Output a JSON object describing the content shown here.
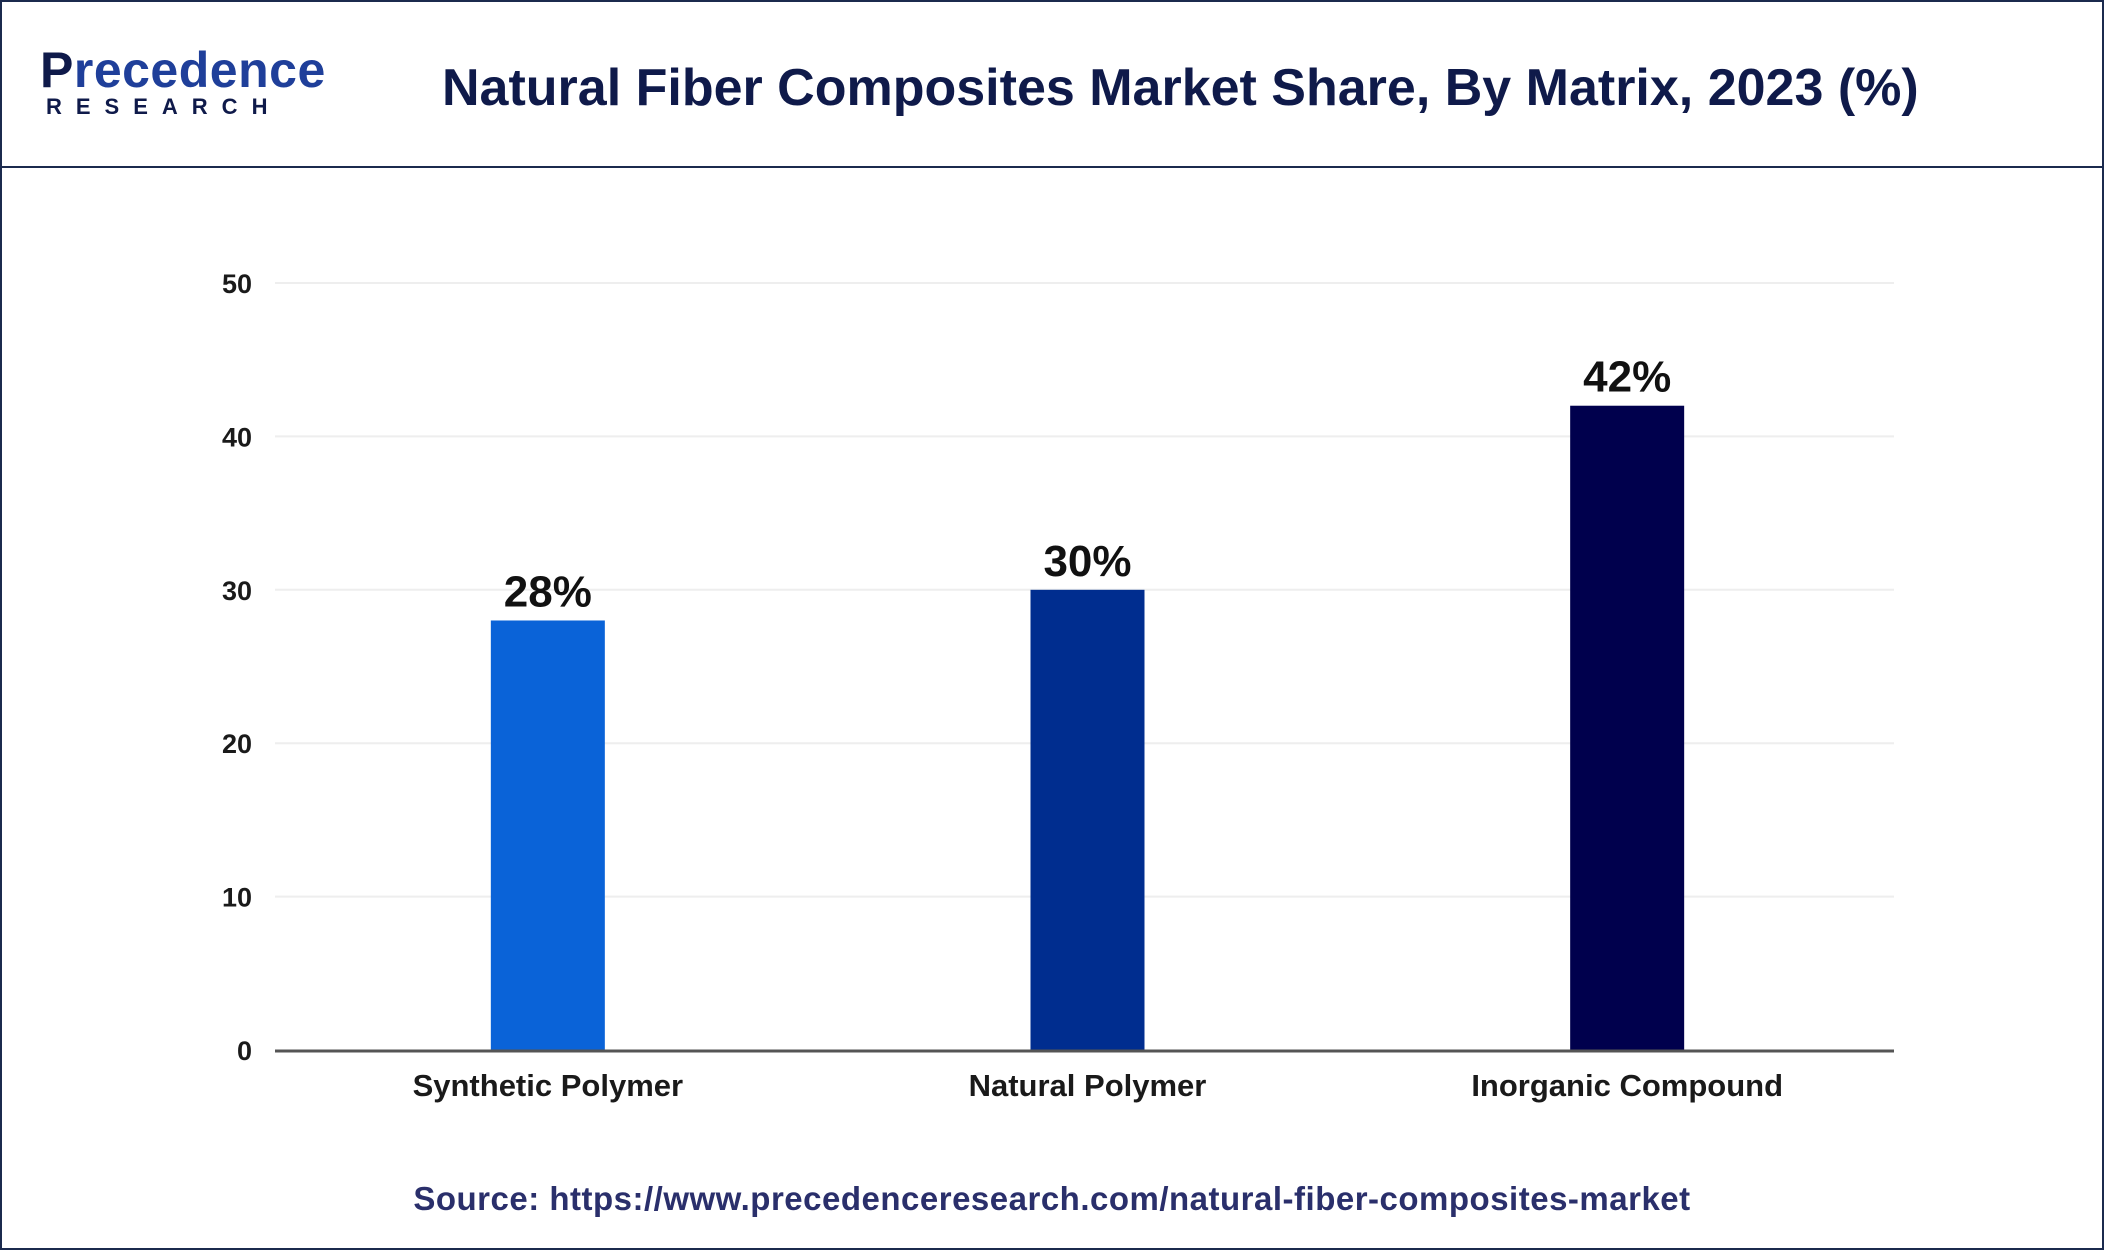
{
  "brand": {
    "logo_word": "recedence",
    "logo_initial": "P",
    "logo_sub": "RESEARCH"
  },
  "title": "Natural Fiber Composites Market Share, By Matrix, 2023 (%)",
  "source": "Source: https://www.precedenceresearch.com/natural-fiber-composites-market",
  "chart_data": {
    "type": "bar",
    "categories": [
      "Synthetic Polymer",
      "Natural Polymer",
      "Inorganic Compound"
    ],
    "values": [
      28,
      30,
      42
    ],
    "data_labels": [
      "28%",
      "30%",
      "42%"
    ],
    "colors": [
      "#0a63d8",
      "#002d8f",
      "#00004d"
    ],
    "ylim": [
      0,
      50
    ],
    "yticks": [
      0,
      10,
      20,
      30,
      40,
      50
    ],
    "xlabel": "",
    "ylabel": "",
    "grid": true,
    "legend": "none"
  }
}
